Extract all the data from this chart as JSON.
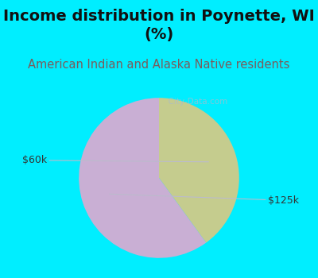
{
  "title": "Income distribution in Poynette, WI\n(%)",
  "subtitle": "American Indian and Alaska Native residents",
  "slices": [
    {
      "label": "$60k",
      "value": 40,
      "color": "#c5cc8e"
    },
    {
      "label": "$125k",
      "value": 60,
      "color": "#c9afd4"
    }
  ],
  "bg_color": "#00eeff",
  "panel_color": "#f0f8f0",
  "title_color": "#111111",
  "subtitle_color": "#7a5c5c",
  "label_color": "#333333",
  "watermark": "City-Data.com",
  "startangle": 90,
  "label_fontsize": 9,
  "title_fontsize": 14,
  "subtitle_fontsize": 10.5
}
